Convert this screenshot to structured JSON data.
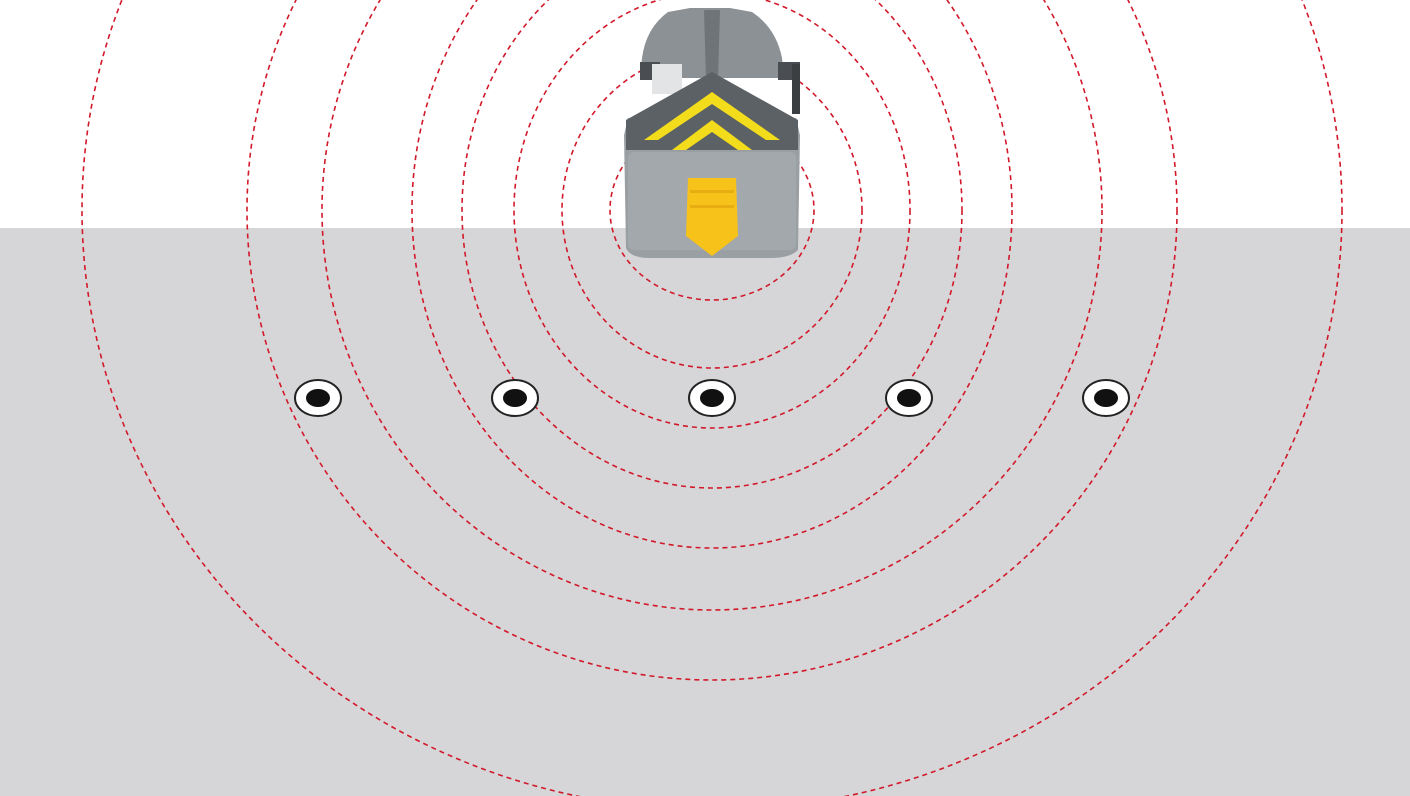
{
  "colors": {
    "sky": "#ffffff",
    "ground": "#d6d6d8",
    "wave": "#d2192a",
    "marker_ring": "#ffffff",
    "marker_center": "#111111",
    "body_gray": "#8f9498",
    "stripe_yellow": "#f2dc1b",
    "plate_yellow": "#f7c21a"
  },
  "icons": {
    "transmitter": "signal-transmitter-icon",
    "marker": "target-marker-icon"
  },
  "markers_count": 5,
  "rings_count": 8
}
